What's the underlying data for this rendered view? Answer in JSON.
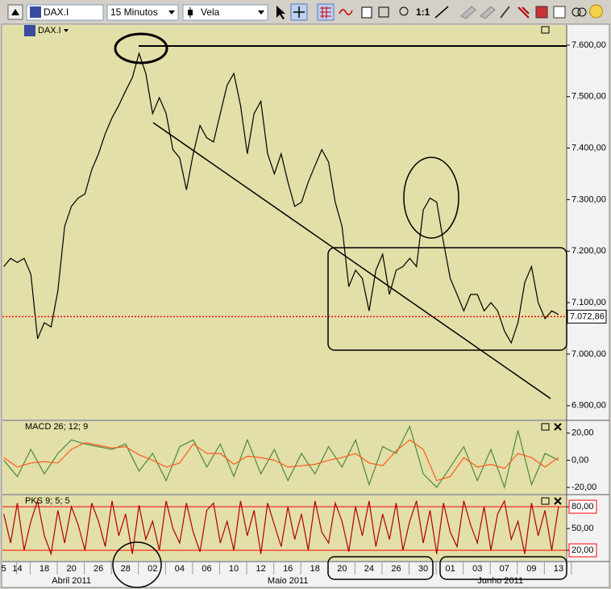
{
  "toolbar": {
    "symbol": "DAX.I",
    "interval": "15 Minutos",
    "chart_type": "Vela",
    "zoom": "1:1"
  },
  "chart_data": [
    {
      "type": "line",
      "title": "DAX.I",
      "color": "#000000",
      "x": [
        0,
        0.5,
        1,
        1.5,
        2,
        2.5,
        3,
        3.5,
        4,
        4.5,
        5,
        5.5,
        6,
        6.5,
        7,
        7.5,
        8,
        8.5,
        9,
        9.5,
        10,
        10.5,
        11,
        11.5,
        12,
        12.5,
        13,
        13.5,
        14,
        14.5,
        15,
        15.5,
        16,
        16.5,
        17,
        17.5,
        18,
        18.5,
        19,
        19.5,
        20,
        20.5,
        21,
        21.5,
        22,
        22.5,
        23,
        23.5,
        24,
        24.5,
        25,
        25.5,
        26,
        26.5,
        27,
        27.5,
        28,
        28.5,
        29,
        29.5,
        30,
        30.5,
        31,
        31.5,
        32,
        32.5,
        33,
        33.5,
        34,
        34.5,
        35,
        35.5,
        36,
        36.5,
        37,
        37.5,
        38,
        38.5,
        39,
        39.5,
        40,
        40.5,
        41
      ],
      "values": [
        7170,
        7186,
        7178,
        7186,
        7155,
        7030,
        7061,
        7053,
        7123,
        7248,
        7287,
        7303,
        7311,
        7358,
        7389,
        7428,
        7459,
        7483,
        7511,
        7537,
        7584,
        7545,
        7467,
        7498,
        7467,
        7397,
        7381,
        7319,
        7389,
        7444,
        7420,
        7412,
        7467,
        7522,
        7545,
        7483,
        7389,
        7467,
        7491,
        7389,
        7350,
        7389,
        7334,
        7287,
        7295,
        7334,
        7366,
        7397,
        7373,
        7295,
        7248,
        7131,
        7163,
        7147,
        7084,
        7163,
        7194,
        7116,
        7163,
        7170,
        7186,
        7170,
        7280,
        7303,
        7295,
        7217,
        7147,
        7116,
        7084,
        7116,
        7116,
        7084,
        7100,
        7084,
        7045,
        7022,
        7061,
        7139,
        7170,
        7100,
        7069,
        7084,
        7077
      ],
      "last_price": {
        "value": 7072.86,
        "label": "7.072,86"
      },
      "last_price_color": "#ff0000",
      "xlim": [
        -0.1,
        41.6
      ],
      "ylim": [
        6873,
        7639
      ],
      "yticks": [
        {
          "value": 7600,
          "label": "7.600,00"
        },
        {
          "value": 7500,
          "label": "7.500,00"
        },
        {
          "value": 7400,
          "label": "7.400,00"
        },
        {
          "value": 7300,
          "label": "7.300,00"
        },
        {
          "value": 7200,
          "label": "7.200,00"
        },
        {
          "value": 7100,
          "label": "7.100,00"
        },
        {
          "value": 7000,
          "label": "7.000,00"
        },
        {
          "value": 6900,
          "label": "6.900,00"
        }
      ]
    },
    {
      "type": "line",
      "title": "MACD 26; 12; 9",
      "title_color": "#2e8b2e",
      "x": [
        0,
        1,
        2,
        3,
        4,
        5,
        6,
        7,
        8,
        9,
        10,
        11,
        12,
        13,
        14,
        15,
        16,
        17,
        18,
        19,
        20,
        21,
        22,
        23,
        24,
        25,
        26,
        27,
        28,
        29,
        30,
        31,
        32,
        33,
        34,
        35,
        36,
        37,
        38,
        39,
        40,
        41
      ],
      "series": [
        {
          "color": "#4d8a3a",
          "values": [
            0,
            -12,
            8,
            -10,
            5,
            15,
            12,
            10,
            8,
            12,
            -8,
            5,
            -15,
            10,
            15,
            -5,
            12,
            -12,
            15,
            -10,
            8,
            -15,
            5,
            -10,
            10,
            -5,
            15,
            -18,
            10,
            5,
            25,
            -10,
            -20,
            -5,
            10,
            -15,
            8,
            -20,
            22,
            -18,
            5,
            0
          ]
        },
        {
          "color": "#ff5a1e",
          "values": [
            2,
            -5,
            -2,
            -1,
            -2,
            8,
            13,
            11,
            9,
            10,
            4,
            0,
            -5,
            -2,
            12,
            5,
            5,
            -3,
            3,
            2,
            0,
            -5,
            -4,
            -3,
            0,
            2,
            5,
            -2,
            -4,
            7,
            15,
            8,
            -15,
            -12,
            2,
            -5,
            -3,
            -6,
            5,
            2,
            -5,
            2
          ]
        }
      ],
      "xlim": [
        -0.1,
        41.6
      ],
      "ylim": [
        -24.7,
        28.8
      ],
      "yticks": [
        {
          "value": 20,
          "label": "20,00"
        },
        {
          "value": 0,
          "label": "0,00"
        },
        {
          "value": -20,
          "label": "-20,00"
        }
      ]
    },
    {
      "type": "line",
      "title": "PKS 9; 5; 5",
      "color": "#b00000",
      "x": [
        0,
        0.5,
        1,
        1.5,
        2,
        2.5,
        3,
        3.5,
        4,
        4.5,
        5,
        5.5,
        6,
        6.5,
        7,
        7.5,
        8,
        8.5,
        9,
        9.5,
        10,
        10.5,
        11,
        11.5,
        12,
        12.5,
        13,
        13.5,
        14,
        14.5,
        15,
        15.5,
        16,
        16.5,
        17,
        17.5,
        18,
        18.5,
        19,
        19.5,
        20,
        20.5,
        21,
        21.5,
        22,
        22.5,
        23,
        23.5,
        24,
        24.5,
        25,
        25.5,
        26,
        26.5,
        27,
        27.5,
        28,
        28.5,
        29,
        29.5,
        30,
        30.5,
        31,
        31.5,
        32,
        32.5,
        33,
        33.5,
        34,
        34.5,
        35,
        35.5,
        36,
        36.5,
        37,
        37.5,
        38,
        38.5,
        39,
        39.5,
        40,
        40.5,
        41
      ],
      "values": [
        70,
        30,
        85,
        20,
        60,
        88,
        40,
        15,
        75,
        30,
        80,
        55,
        20,
        85,
        60,
        25,
        88,
        40,
        70,
        15,
        82,
        35,
        60,
        20,
        88,
        50,
        30,
        85,
        45,
        18,
        75,
        85,
        30,
        60,
        20,
        88,
        40,
        75,
        15,
        85,
        55,
        25,
        80,
        35,
        70,
        20,
        88,
        45,
        30,
        85,
        60,
        18,
        80,
        40,
        88,
        25,
        70,
        35,
        85,
        20,
        60,
        88,
        30,
        75,
        15,
        85,
        45,
        25,
        88,
        55,
        30,
        80,
        20,
        70,
        88,
        35,
        60,
        15,
        85,
        40,
        75,
        20,
        80
      ],
      "ref_lines": [
        80,
        20
      ],
      "ref_color": "#ff0000",
      "xlim": [
        -0.1,
        41.6
      ],
      "ylim": [
        5.6,
        95.6
      ],
      "yticks": [
        {
          "value": 80,
          "label": "80,00"
        },
        {
          "value": 50,
          "label": "50,00"
        },
        {
          "value": 20,
          "label": "20,00"
        }
      ],
      "xticks": [
        {
          "value": 0,
          "label": "5"
        },
        {
          "value": 1,
          "label": "14"
        },
        {
          "value": 3,
          "label": "18"
        },
        {
          "value": 5,
          "label": "20"
        },
        {
          "value": 7,
          "label": "26"
        },
        {
          "value": 9,
          "label": "28"
        },
        {
          "value": 11,
          "label": "02"
        },
        {
          "value": 13,
          "label": "04"
        },
        {
          "value": 15,
          "label": "06"
        },
        {
          "value": 17,
          "label": "10"
        },
        {
          "value": 19,
          "label": "12"
        },
        {
          "value": 21,
          "label": "16"
        },
        {
          "value": 23,
          "label": "18"
        },
        {
          "value": 25,
          "label": "20"
        },
        {
          "value": 27,
          "label": "24"
        },
        {
          "value": 29,
          "label": "26"
        },
        {
          "value": 31,
          "label": "30"
        },
        {
          "value": 33,
          "label": "01"
        },
        {
          "value": 35,
          "label": "03"
        },
        {
          "value": 37,
          "label": "07"
        },
        {
          "value": 39,
          "label": "09"
        },
        {
          "value": 41,
          "label": "13"
        }
      ],
      "month_ticks": [
        {
          "value": 5,
          "label": "Abril 2011"
        },
        {
          "value": 21,
          "label": "Maio 2011"
        },
        {
          "value": 36.7,
          "label": "Junho 2011"
        }
      ]
    }
  ]
}
